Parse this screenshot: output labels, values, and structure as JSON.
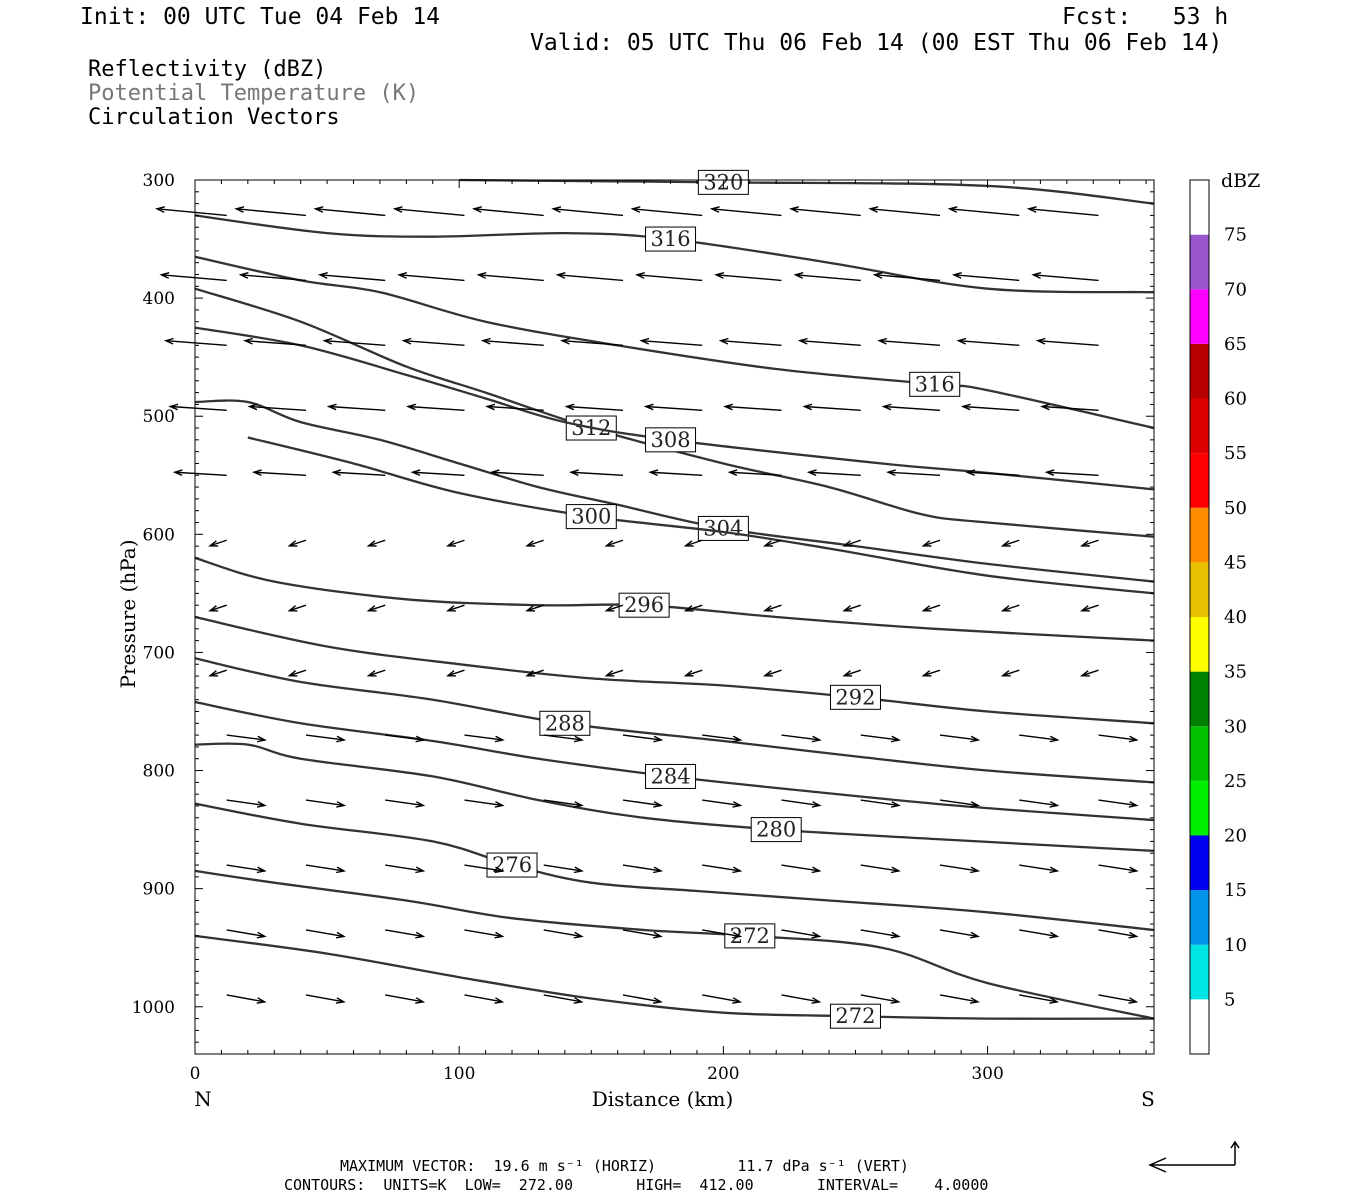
{
  "header": {
    "init": "Init: 00 UTC Tue 04 Feb 14",
    "fcst": "Fcst:   53 h",
    "valid": "Valid: 05 UTC Thu 06 Feb 14 (00 EST Thu 06 Feb 14)"
  },
  "legend": {
    "line1": "Reflectivity (dBZ)",
    "line2": "Potential Temperature (K)",
    "line3": "Circulation Vectors"
  },
  "footer": {
    "line1": "MAXIMUM VECTOR:  19.6 m s⁻¹ (HORIZ)         11.7 dPa s⁻¹ (VERT)",
    "line2": "CONTOURS:  UNITS=K  LOW=  272.00       HIGH=  412.00       INTERVAL=    4.0000"
  },
  "colors": {
    "contour": "#333333",
    "text": "#000000",
    "legend_gray": "#777777"
  },
  "chart_data": {
    "type": "contour",
    "xlabel": "Distance (km)",
    "ylabel": "Pressure (hPa)",
    "xlim": [
      0,
      363
    ],
    "ylim": [
      1040,
      300
    ],
    "xticks": [
      0,
      100,
      200,
      300
    ],
    "yticks": [
      300,
      400,
      500,
      600,
      700,
      800,
      900,
      1000
    ],
    "x_left_label": "N",
    "x_right_label": "S",
    "colorbar": {
      "title": "dBZ",
      "levels": [
        5,
        10,
        15,
        20,
        25,
        30,
        35,
        40,
        45,
        50,
        55,
        60,
        65,
        70,
        75
      ],
      "colors": [
        "#ffffff",
        "#00e4e4",
        "#0094e8",
        "#0000ee",
        "#00f000",
        "#00c000",
        "#008000",
        "#ffff00",
        "#e8c000",
        "#ff8c00",
        "#ff0000",
        "#dd0000",
        "#b80000",
        "#ff00ff",
        "#9955cc",
        "#ffffff"
      ]
    },
    "contours": [
      {
        "label": "320",
        "points": [
          [
            100,
            300
          ],
          [
            200,
            302
          ],
          [
            300,
            305
          ],
          [
            363,
            320
          ]
        ]
      },
      {
        "label": "316",
        "points": [
          [
            0,
            330
          ],
          [
            50,
            345
          ],
          [
            90,
            348
          ],
          [
            140,
            345
          ],
          [
            180,
            350
          ],
          [
            240,
            370
          ],
          [
            300,
            392
          ],
          [
            363,
            395
          ]
        ]
      },
      {
        "label": "316",
        "points": [
          [
            0,
            365
          ],
          [
            40,
            385
          ],
          [
            70,
            395
          ],
          [
            110,
            420
          ],
          [
            160,
            440
          ],
          [
            220,
            460
          ],
          [
            280,
            473
          ],
          [
            300,
            478
          ],
          [
            363,
            510
          ]
        ]
      },
      {
        "label": "312",
        "points": [
          [
            0,
            392
          ],
          [
            40,
            420
          ],
          [
            80,
            458
          ],
          [
            110,
            480
          ],
          [
            150,
            510
          ],
          [
            200,
            540
          ],
          [
            240,
            560
          ],
          [
            275,
            583
          ],
          [
            300,
            590
          ],
          [
            363,
            602
          ]
        ]
      },
      {
        "label": "308",
        "points": [
          [
            0,
            425
          ],
          [
            40,
            440
          ],
          [
            80,
            465
          ],
          [
            110,
            485
          ],
          [
            140,
            505
          ],
          [
            180,
            520
          ],
          [
            260,
            540
          ],
          [
            300,
            548
          ],
          [
            363,
            562
          ]
        ]
      },
      {
        "label": "304",
        "points": [
          [
            0,
            488
          ],
          [
            20,
            488
          ],
          [
            40,
            505
          ],
          [
            70,
            520
          ],
          [
            100,
            540
          ],
          [
            130,
            560
          ],
          [
            160,
            575
          ],
          [
            200,
            595
          ],
          [
            250,
            610
          ],
          [
            300,
            625
          ],
          [
            363,
            640
          ]
        ]
      },
      {
        "label": "300",
        "points": [
          [
            20,
            518
          ],
          [
            60,
            540
          ],
          [
            100,
            565
          ],
          [
            150,
            585
          ],
          [
            200,
            598
          ],
          [
            240,
            612
          ],
          [
            300,
            635
          ],
          [
            363,
            650
          ]
        ]
      },
      {
        "label": "296",
        "points": [
          [
            0,
            620
          ],
          [
            30,
            640
          ],
          [
            80,
            655
          ],
          [
            130,
            660
          ],
          [
            170,
            660
          ],
          [
            220,
            670
          ],
          [
            280,
            680
          ],
          [
            363,
            690
          ]
        ]
      },
      {
        "label": "292",
        "points": [
          [
            0,
            670
          ],
          [
            50,
            695
          ],
          [
            100,
            710
          ],
          [
            150,
            722
          ],
          [
            200,
            728
          ],
          [
            250,
            738
          ],
          [
            300,
            750
          ],
          [
            363,
            760
          ]
        ]
      },
      {
        "label": "288",
        "points": [
          [
            0,
            705
          ],
          [
            40,
            725
          ],
          [
            90,
            740
          ],
          [
            140,
            760
          ],
          [
            200,
            775
          ],
          [
            250,
            788
          ],
          [
            300,
            800
          ],
          [
            363,
            810
          ]
        ]
      },
      {
        "label": "284",
        "points": [
          [
            0,
            742
          ],
          [
            40,
            760
          ],
          [
            90,
            775
          ],
          [
            130,
            790
          ],
          [
            180,
            805
          ],
          [
            230,
            817
          ],
          [
            290,
            830
          ],
          [
            363,
            842
          ]
        ]
      },
      {
        "label": "280",
        "points": [
          [
            0,
            778
          ],
          [
            20,
            778
          ],
          [
            40,
            790
          ],
          [
            90,
            805
          ],
          [
            130,
            825
          ],
          [
            170,
            840
          ],
          [
            220,
            850
          ],
          [
            280,
            858
          ],
          [
            363,
            868
          ]
        ]
      },
      {
        "label": "276",
        "points": [
          [
            0,
            828
          ],
          [
            40,
            845
          ],
          [
            90,
            860
          ],
          [
            120,
            880
          ],
          [
            150,
            895
          ],
          [
            190,
            902
          ],
          [
            240,
            910
          ],
          [
            300,
            920
          ],
          [
            363,
            935
          ]
        ]
      },
      {
        "label": "272",
        "points": [
          [
            0,
            885
          ],
          [
            30,
            895
          ],
          [
            80,
            910
          ],
          [
            120,
            925
          ],
          [
            170,
            935
          ],
          [
            210,
            940
          ],
          [
            260,
            950
          ],
          [
            300,
            980
          ],
          [
            363,
            1010
          ]
        ]
      },
      {
        "label": "272",
        "points": [
          [
            0,
            940
          ],
          [
            50,
            955
          ],
          [
            100,
            975
          ],
          [
            150,
            993
          ],
          [
            200,
            1005
          ],
          [
            250,
            1008
          ],
          [
            300,
            1010
          ],
          [
            363,
            1010
          ]
        ]
      }
    ]
  }
}
